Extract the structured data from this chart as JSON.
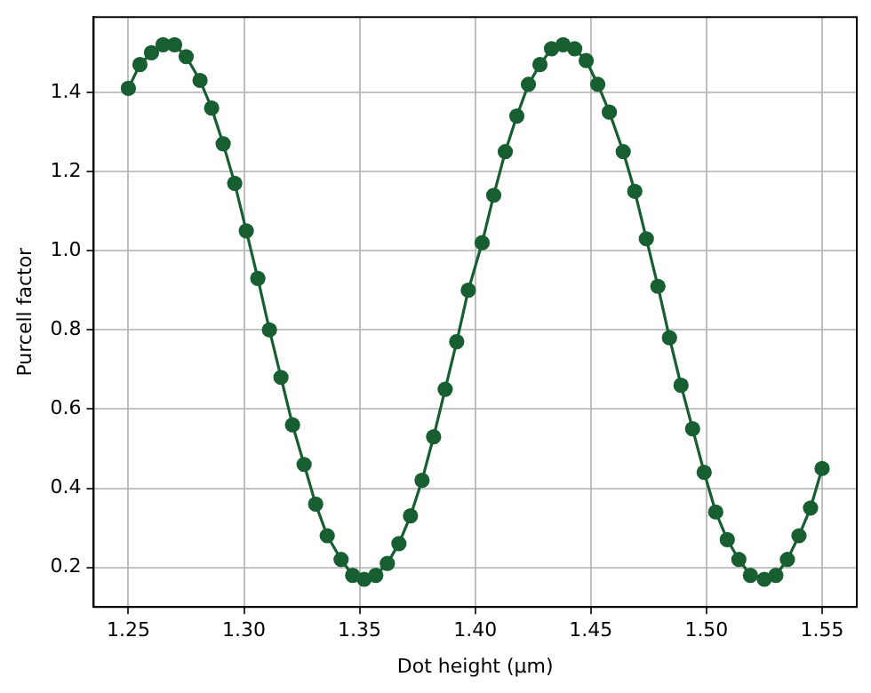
{
  "chart_data": {
    "type": "line",
    "xlabel": "Dot height (μm)",
    "ylabel": "Purcell factor",
    "x": [
      1.25,
      1.255,
      1.26,
      1.265,
      1.27,
      1.275,
      1.281,
      1.286,
      1.291,
      1.296,
      1.301,
      1.306,
      1.311,
      1.316,
      1.321,
      1.326,
      1.331,
      1.336,
      1.342,
      1.347,
      1.352,
      1.357,
      1.362,
      1.367,
      1.372,
      1.377,
      1.382,
      1.387,
      1.392,
      1.397,
      1.403,
      1.408,
      1.413,
      1.418,
      1.423,
      1.428,
      1.433,
      1.438,
      1.443,
      1.448,
      1.453,
      1.458,
      1.464,
      1.469,
      1.474,
      1.479,
      1.484,
      1.489,
      1.494,
      1.499,
      1.504,
      1.509,
      1.514,
      1.519,
      1.525,
      1.53,
      1.535,
      1.54,
      1.545,
      1.55
    ],
    "series": [
      {
        "color": "#175e31",
        "values": [
          1.41,
          1.47,
          1.5,
          1.52,
          1.52,
          1.49,
          1.43,
          1.36,
          1.27,
          1.17,
          1.05,
          0.93,
          0.8,
          0.68,
          0.56,
          0.46,
          0.36,
          0.28,
          0.22,
          0.18,
          0.17,
          0.18,
          0.21,
          0.26,
          0.33,
          0.42,
          0.53,
          0.65,
          0.77,
          0.9,
          1.02,
          1.14,
          1.25,
          1.34,
          1.42,
          1.47,
          1.51,
          1.52,
          1.51,
          1.48,
          1.42,
          1.35,
          1.25,
          1.15,
          1.03,
          0.91,
          0.78,
          0.66,
          0.55,
          0.44,
          0.34,
          0.27,
          0.22,
          0.18,
          0.17,
          0.18,
          0.22,
          0.28,
          0.35,
          0.45
        ]
      }
    ],
    "xlim": [
      1.235,
      1.565
    ],
    "xticks": [
      {
        "value": 1.25,
        "label": "1.25"
      },
      {
        "value": 1.3,
        "label": "1.30"
      },
      {
        "value": 1.35,
        "label": "1.35"
      },
      {
        "value": 1.4,
        "label": "1.40"
      },
      {
        "value": 1.45,
        "label": "1.45"
      },
      {
        "value": 1.5,
        "label": "1.50"
      },
      {
        "value": 1.55,
        "label": "1.55"
      }
    ],
    "ylim": [
      0.1,
      1.59
    ],
    "yticks": [
      0.2,
      0.4,
      0.6,
      0.8,
      {
        "value": 1.0,
        "label": "1.0"
      },
      1.2,
      1.4
    ],
    "grid": true,
    "marker": "circle",
    "line_style": "solid",
    "legend": false
  }
}
